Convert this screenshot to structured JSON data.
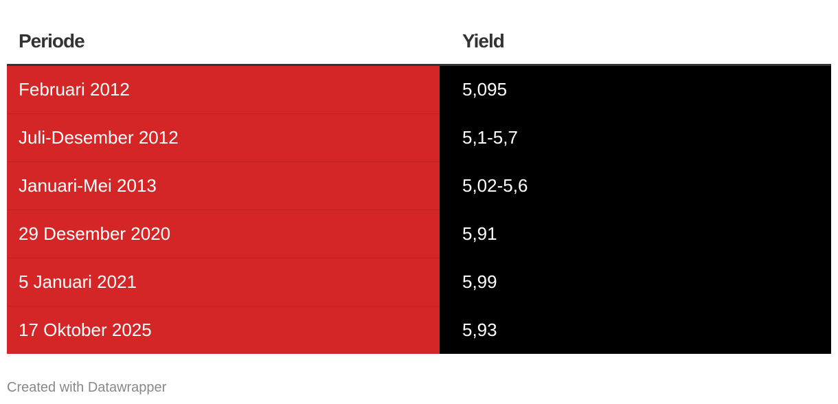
{
  "table": {
    "header": [
      "Periode",
      "Yield"
    ],
    "rows": [
      [
        "Februari 2012",
        "5,095"
      ],
      [
        "Juli-Desember 2012",
        "5,1-5,7"
      ],
      [
        "Januari-Mei 2013",
        "5,02-5,6"
      ],
      [
        "29 Desember 2020",
        "5,91"
      ],
      [
        "5 Januari 2021",
        "5,99"
      ],
      [
        "17 Oktober 2025",
        "5,93"
      ]
    ]
  },
  "footer": "Created with Datawrapper"
}
